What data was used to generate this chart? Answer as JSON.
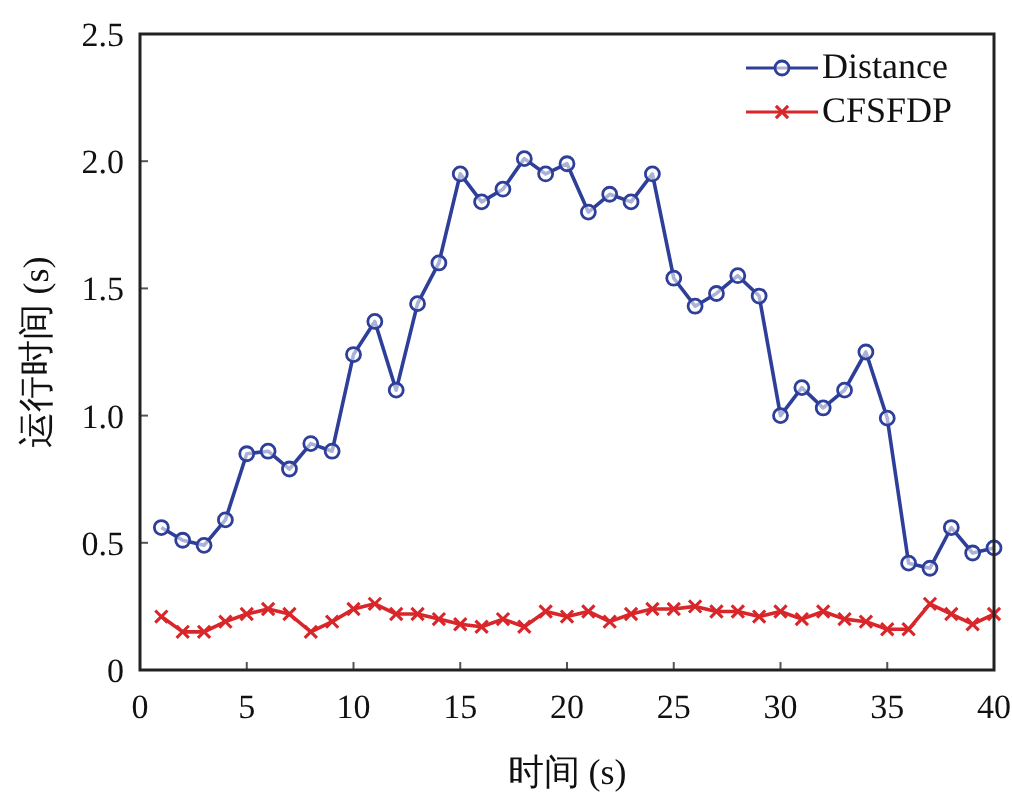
{
  "chart_data": {
    "type": "line",
    "xlabel": "时间 (s)",
    "ylabel": "运行时间 (s)",
    "x": [
      1,
      2,
      3,
      4,
      5,
      6,
      7,
      8,
      9,
      10,
      11,
      12,
      13,
      14,
      15,
      16,
      17,
      18,
      19,
      20,
      21,
      22,
      23,
      24,
      25,
      26,
      27,
      28,
      29,
      30,
      31,
      32,
      33,
      34,
      35,
      36,
      37,
      38,
      39,
      40
    ],
    "series": [
      {
        "name": "Distance",
        "color": "#2e3f9a",
        "marker": "circle",
        "values": [
          0.56,
          0.51,
          0.49,
          0.59,
          0.85,
          0.86,
          0.79,
          0.89,
          0.86,
          1.24,
          1.37,
          1.1,
          1.44,
          1.6,
          1.95,
          1.84,
          1.89,
          2.01,
          1.95,
          1.99,
          1.8,
          1.87,
          1.84,
          1.95,
          1.54,
          1.43,
          1.48,
          1.55,
          1.47,
          1.0,
          1.11,
          1.03,
          1.1,
          1.25,
          0.99,
          0.42,
          0.4,
          0.56,
          0.46,
          0.48
        ]
      },
      {
        "name": "CFSFDP",
        "color": "#d9262a",
        "marker": "cross",
        "values": [
          0.21,
          0.15,
          0.15,
          0.19,
          0.22,
          0.24,
          0.22,
          0.15,
          0.19,
          0.24,
          0.26,
          0.22,
          0.22,
          0.2,
          0.18,
          0.17,
          0.2,
          0.17,
          0.23,
          0.21,
          0.23,
          0.19,
          0.22,
          0.24,
          0.24,
          0.25,
          0.23,
          0.23,
          0.21,
          0.23,
          0.2,
          0.23,
          0.2,
          0.19,
          0.16,
          0.16,
          0.26,
          0.22,
          0.18,
          0.22
        ]
      }
    ],
    "xlim": [
      0,
      40
    ],
    "xticks": [
      0,
      5,
      10,
      15,
      20,
      25,
      30,
      35,
      40
    ],
    "ylim": [
      0,
      2.5
    ],
    "yticks": [
      {
        "value": 0,
        "label": "0"
      },
      {
        "value": 0.5,
        "label": "0.5"
      },
      {
        "value": 1,
        "label": "1.0"
      },
      {
        "value": 1.5,
        "label": "1.5"
      },
      {
        "value": 2,
        "label": "2.0"
      },
      {
        "value": 2.5,
        "label": "2.5"
      }
    ],
    "legend": "top right",
    "grid": false,
    "line_style": "solid"
  }
}
